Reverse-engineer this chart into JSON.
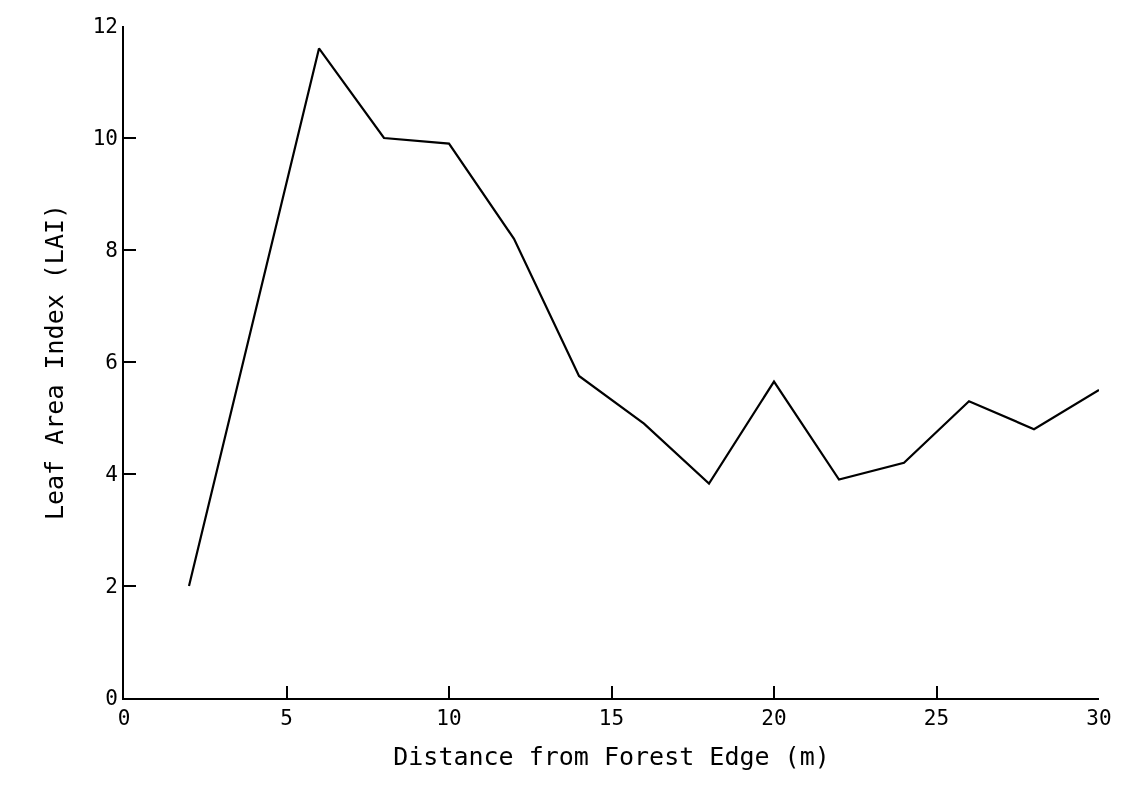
{
  "chart_data": {
    "type": "line",
    "xlabel": "Distance from Forest Edge (m)",
    "ylabel": "Leaf Area Index (LAI)",
    "x": [
      2,
      4,
      6,
      8,
      10,
      12,
      14,
      16,
      18,
      20,
      22,
      24,
      26,
      28,
      30
    ],
    "series": [
      {
        "color": "#000000",
        "values": [
          2.0,
          6.8,
          11.6,
          10.0,
          9.9,
          8.2,
          5.75,
          4.9,
          3.83,
          5.65,
          3.9,
          4.2,
          5.3,
          4.8,
          5.5
        ]
      }
    ],
    "xlim": [
      0,
      30
    ],
    "xticks": [
      0,
      5,
      10,
      15,
      20,
      25,
      30
    ],
    "ylim": [
      0,
      12
    ],
    "yticks": [
      0,
      2,
      4,
      6,
      8,
      10,
      12
    ]
  }
}
